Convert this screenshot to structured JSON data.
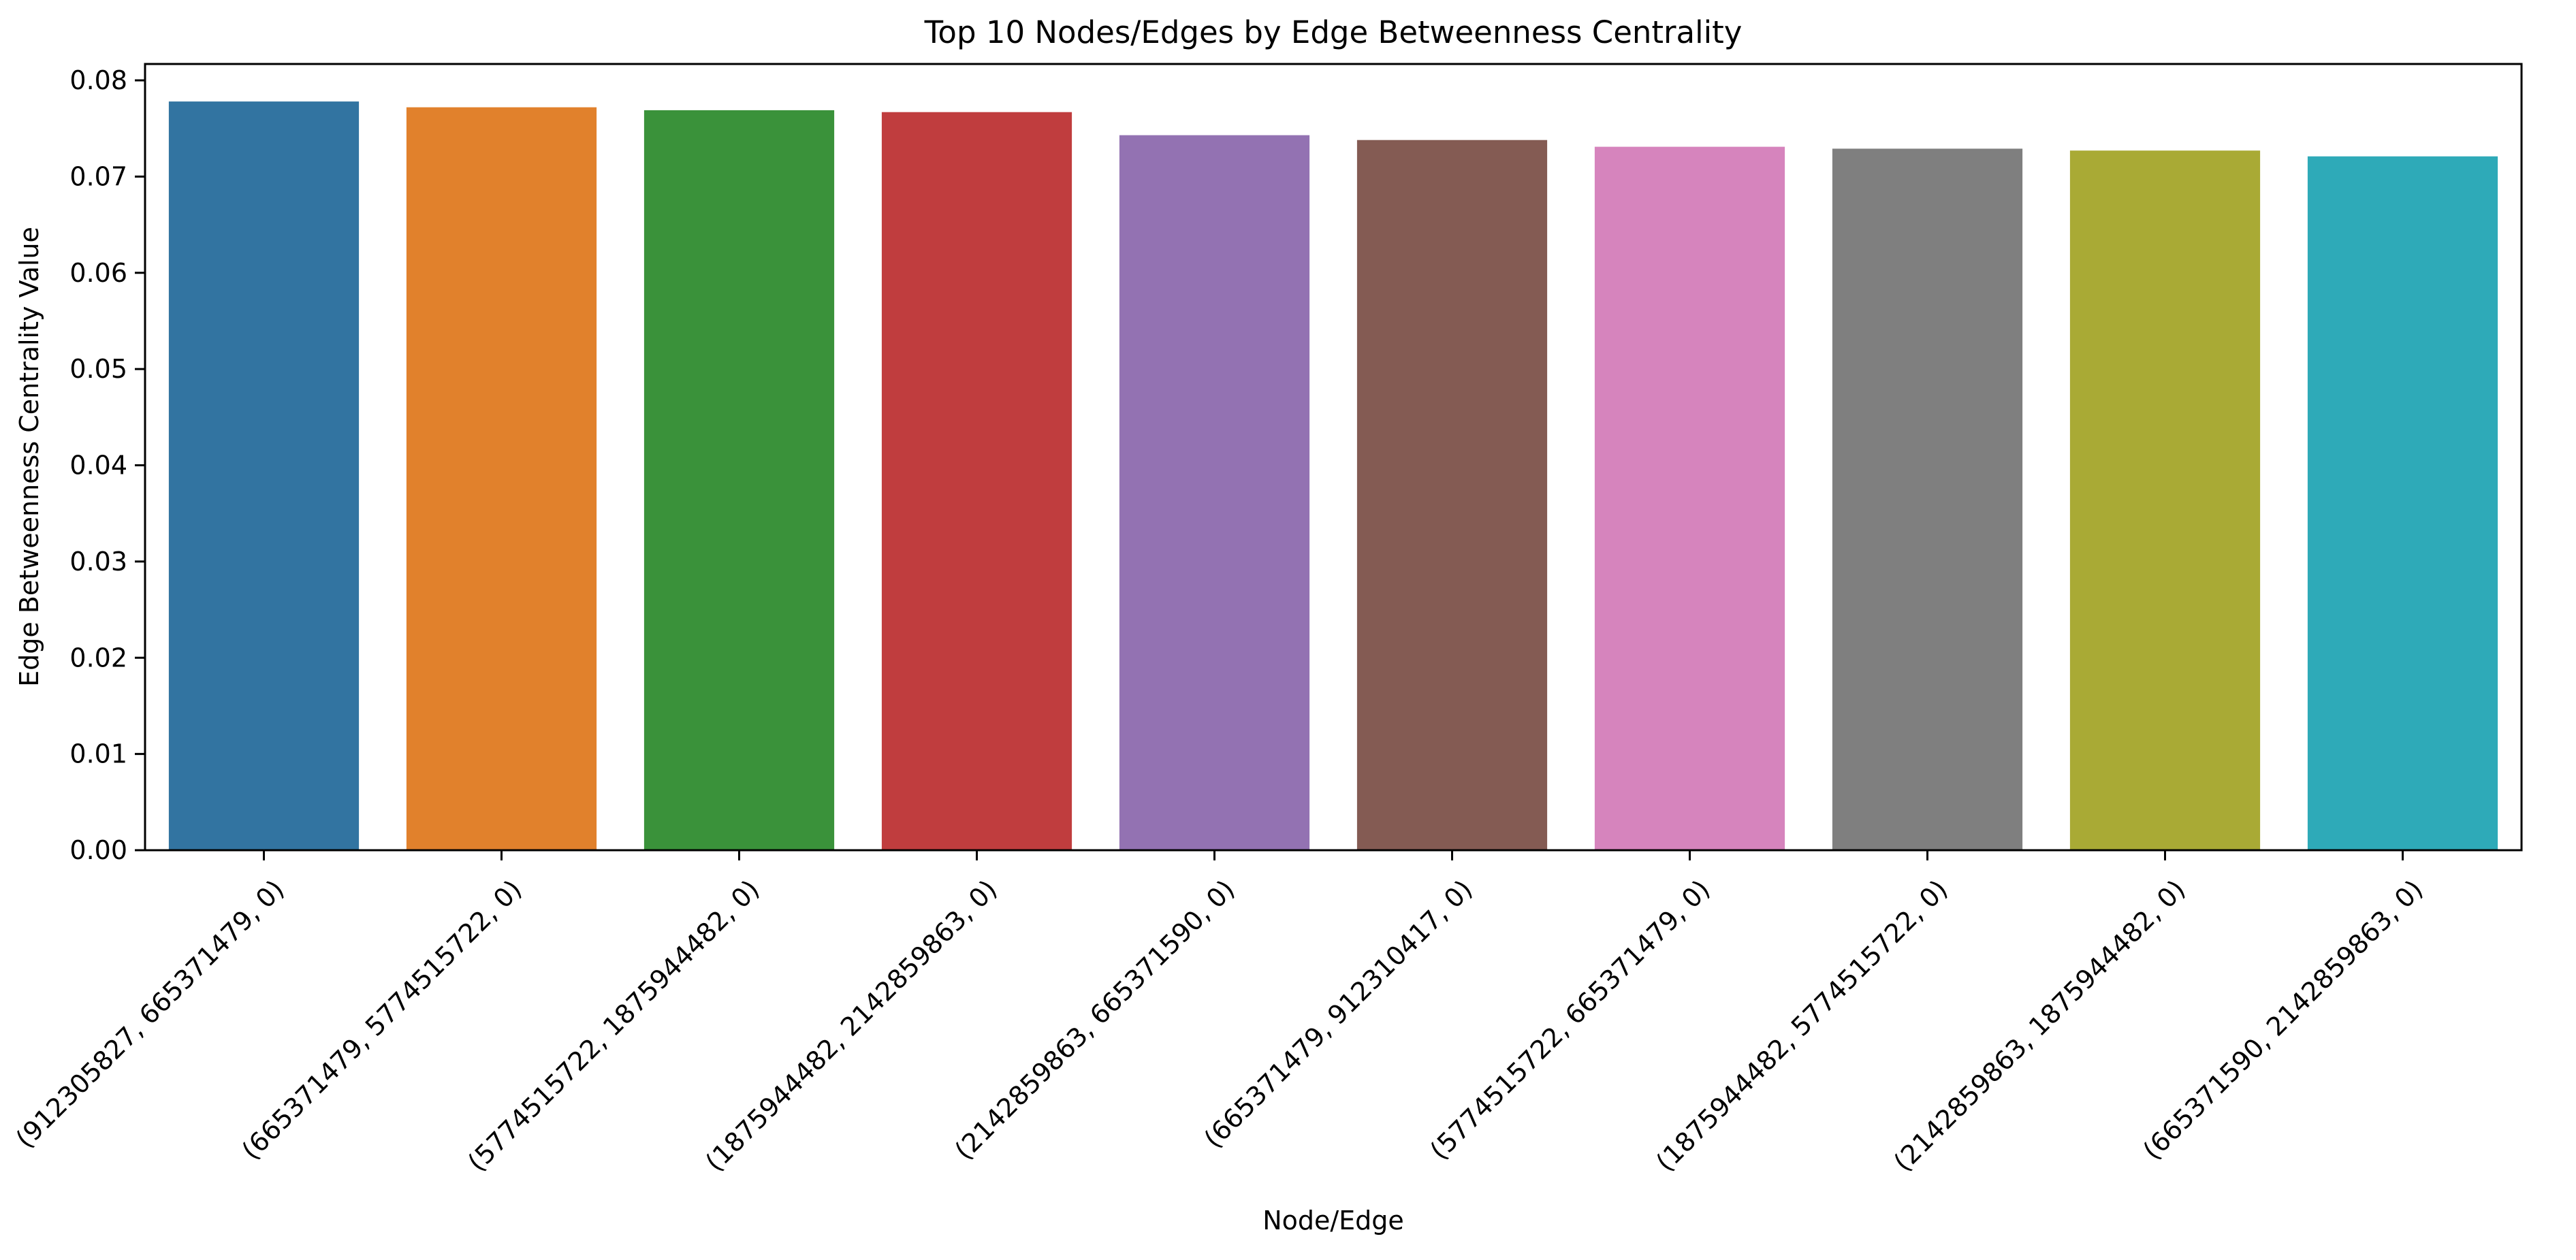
{
  "chart_data": {
    "type": "bar",
    "title": "Top 10 Nodes/Edges by Edge Betweenness Centrality",
    "xlabel": "Node/Edge",
    "ylabel": "Edge Betweenness Centrality Value",
    "categories": [
      "(912305827, 665371479, 0)",
      "(665371479, 5774515722, 0)",
      "(5774515722, 1875944482, 0)",
      "(1875944482, 2142859863, 0)",
      "(2142859863, 665371590, 0)",
      "(665371479, 912310417, 0)",
      "(5774515722, 665371479, 0)",
      "(1875944482, 5774515722, 0)",
      "(2142859863, 1875944482, 0)",
      "(665371590, 2142859863, 0)"
    ],
    "values": [
      0.0778,
      0.0772,
      0.0769,
      0.0767,
      0.0743,
      0.0738,
      0.0731,
      0.0729,
      0.0727,
      0.0721
    ],
    "colors": [
      "#3274a1",
      "#e1812c",
      "#3a923a",
      "#c03d3e",
      "#9372b2",
      "#845b53",
      "#d684bd",
      "#7f7f7f",
      "#a9aa35",
      "#2eaab8"
    ],
    "yticks": [
      "0.00",
      "0.01",
      "0.02",
      "0.03",
      "0.04",
      "0.05",
      "0.06",
      "0.07",
      "0.08"
    ],
    "ylim": [
      0,
      0.0817
    ],
    "grid": false,
    "legend": "none"
  }
}
